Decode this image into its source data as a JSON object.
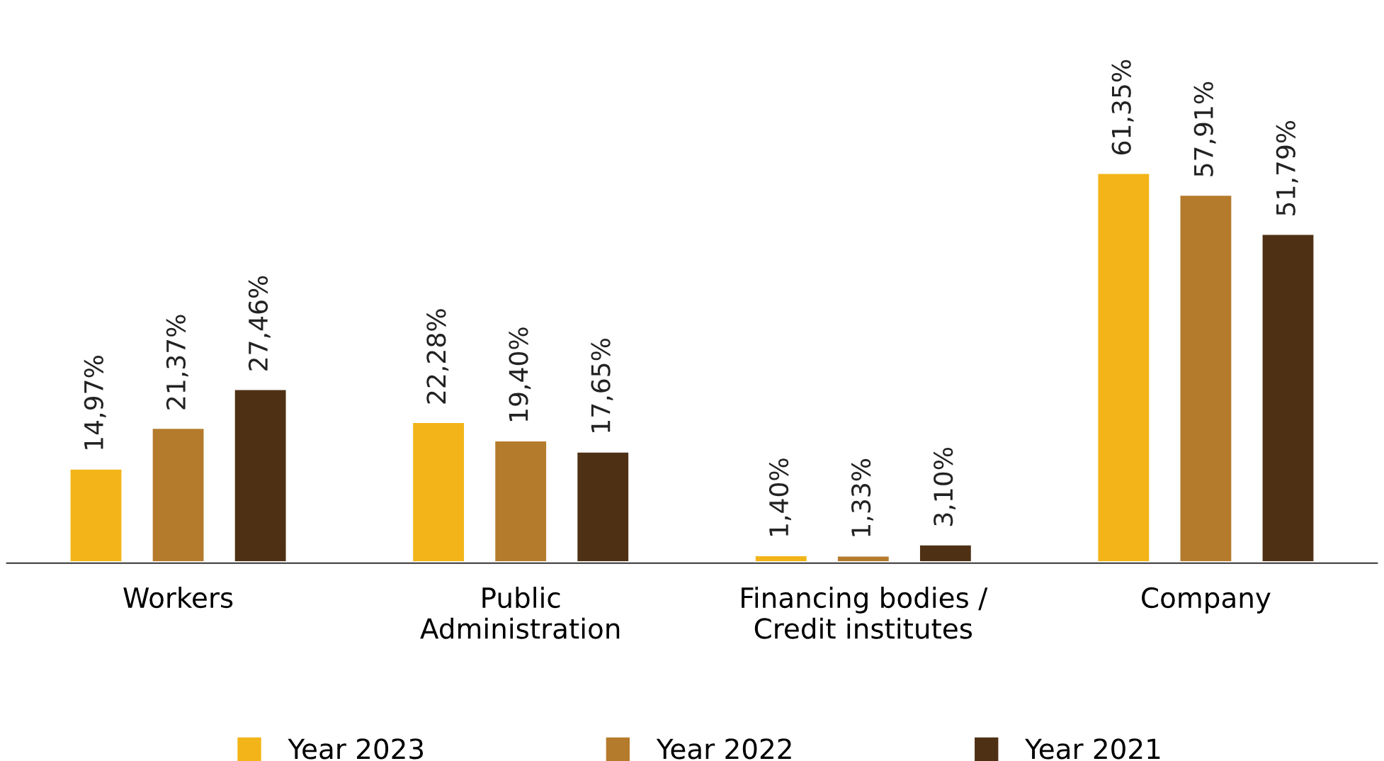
{
  "chart_data": {
    "type": "bar",
    "categories": [
      "Workers",
      "Public\nAdministration",
      "Financing bodies /\nCredit institutes",
      "Company"
    ],
    "series": [
      {
        "name": "Year 2023",
        "color": "#f2b418",
        "values": [
          14.97,
          22.28,
          1.4,
          61.35
        ],
        "value_labels": [
          "14,97%",
          "22,28%",
          "1,40%",
          "61,35%"
        ]
      },
      {
        "name": "Year 2022",
        "color": "#b57b2c",
        "values": [
          21.37,
          19.4,
          1.33,
          57.91
        ],
        "value_labels": [
          "21,37%",
          "19,40%",
          "1,33%",
          "57,91%"
        ]
      },
      {
        "name": "Year 2021",
        "color": "#4e3114",
        "values": [
          27.46,
          17.65,
          3.1,
          51.79
        ],
        "value_labels": [
          "27,46%",
          "17,65%",
          "3,10%",
          "51,79%"
        ]
      }
    ],
    "legend": "bottom",
    "grid": false,
    "marker": "square"
  }
}
